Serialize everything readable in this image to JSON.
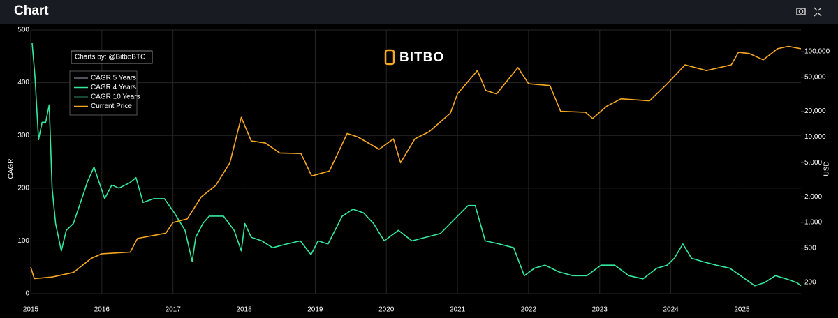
{
  "header": {
    "title": "Chart"
  },
  "chart_data": {
    "type": "line",
    "watermark": "BITBO",
    "credit": "Charts by: @BitboBTC",
    "ylabel": "CAGR",
    "y2label": "USD",
    "xlim": [
      2015,
      2025.83
    ],
    "xticks": [
      2015,
      2016,
      2017,
      2018,
      2019,
      2020,
      2021,
      2022,
      2023,
      2024,
      2025
    ],
    "ylim": [
      0,
      500
    ],
    "yticks": [
      0,
      100,
      200,
      300,
      400,
      500
    ],
    "y2lim": [
      147,
      179000
    ],
    "y2log": true,
    "y2ticks": [
      200,
      500,
      {
        "value": 1000,
        "label": "1,000"
      },
      {
        "value": 2000,
        "label": "2,000"
      },
      {
        "value": 5000,
        "label": "5,000"
      },
      {
        "value": 10000,
        "label": "10,000"
      },
      {
        "value": 20000,
        "label": "20,000"
      },
      {
        "value": 50000,
        "label": "50,000"
      },
      {
        "value": 100000,
        "label": "100,000"
      }
    ],
    "grid": true,
    "series": [
      {
        "name": "CAGR 5 Years",
        "color": "#6b6f78",
        "visible": false
      },
      {
        "name": "CAGR 4 Years",
        "color": "#34e89e",
        "visible": true,
        "x": [
          2015.02,
          2015.06,
          2015.11,
          2015.16,
          2015.21,
          2015.26,
          2015.3,
          2015.35,
          2015.43,
          2015.5,
          2015.6,
          2015.7,
          2015.8,
          2015.89,
          2015.99,
          2016.04,
          2016.14,
          2016.24,
          2016.39,
          2016.48,
          2016.58,
          2016.73,
          2016.88,
          2017.02,
          2017.17,
          2017.27,
          2017.32,
          2017.42,
          2017.51,
          2017.71,
          2017.86,
          2017.96,
          2018.01,
          2018.1,
          2018.25,
          2018.4,
          2018.6,
          2018.79,
          2018.94,
          2019.04,
          2019.18,
          2019.38,
          2019.53,
          2019.68,
          2019.82,
          2019.97,
          2020.17,
          2020.36,
          2020.56,
          2020.76,
          2020.95,
          2021.15,
          2021.25,
          2021.39,
          2021.59,
          2021.79,
          2021.94,
          2022.08,
          2022.23,
          2022.43,
          2022.62,
          2022.82,
          2023.02,
          2023.21,
          2023.41,
          2023.61,
          2023.8,
          2023.95,
          2024.05,
          2024.17,
          2024.29,
          2024.44,
          2024.64,
          2024.83,
          2024.98,
          2025.18,
          2025.32,
          2025.47,
          2025.62,
          2025.77,
          2025.83
        ],
        "values": [
          475,
          411,
          292,
          325,
          325,
          358,
          200,
          133,
          81,
          120,
          133,
          173,
          213,
          240,
          200,
          180,
          206,
          200,
          210,
          220,
          173,
          180,
          180,
          153,
          120,
          61,
          107,
          133,
          147,
          147,
          120,
          81,
          133,
          107,
          100,
          87,
          94,
          100,
          74,
          100,
          94,
          147,
          160,
          153,
          133,
          100,
          120,
          100,
          107,
          114,
          140,
          167,
          167,
          100,
          94,
          87,
          34,
          48,
          54,
          41,
          34,
          34,
          54,
          54,
          34,
          28,
          48,
          54,
          67,
          94,
          67,
          61,
          54,
          48,
          34,
          15,
          21,
          34,
          28,
          21,
          15
        ]
      },
      {
        "name": "CAGR 10 Years",
        "color": "#1f5e44",
        "visible": false
      },
      {
        "name": "Current Price",
        "color": "#f7a823",
        "visible": true,
        "axis": "y2",
        "x": [
          2015.0,
          2015.05,
          2015.3,
          2015.6,
          2015.85,
          2016.0,
          2016.4,
          2016.5,
          2016.9,
          2017.0,
          2017.2,
          2017.4,
          2017.6,
          2017.8,
          2017.96,
          2018.1,
          2018.3,
          2018.5,
          2018.8,
          2018.95,
          2019.2,
          2019.45,
          2019.6,
          2019.9,
          2020.1,
          2020.2,
          2020.4,
          2020.6,
          2020.9,
          2021.0,
          2021.28,
          2021.4,
          2021.55,
          2021.85,
          2022.0,
          2022.3,
          2022.45,
          2022.8,
          2022.9,
          2023.1,
          2023.3,
          2023.7,
          2023.95,
          2024.2,
          2024.5,
          2024.85,
          2024.95,
          2025.1,
          2025.3,
          2025.5,
          2025.65,
          2025.83
        ],
        "values": [
          300,
          220,
          230,
          260,
          380,
          430,
          450,
          650,
          750,
          1000,
          1100,
          2000,
          2700,
          5000,
          17000,
          9000,
          8500,
          6500,
          6400,
          3500,
          4000,
          11000,
          10000,
          7200,
          9500,
          5000,
          9500,
          11500,
          19000,
          32000,
          60000,
          35000,
          32000,
          65000,
          42000,
          40000,
          20000,
          19500,
          16500,
          23000,
          28000,
          26500,
          42000,
          70000,
          60000,
          70000,
          98000,
          95000,
          80000,
          108000,
          115000,
          108000
        ]
      }
    ]
  }
}
